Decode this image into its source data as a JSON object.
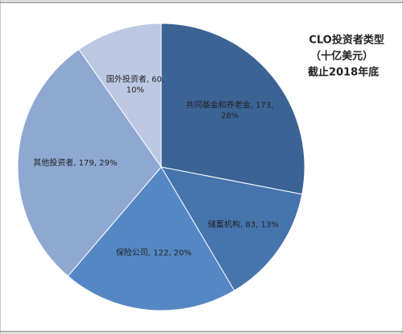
{
  "chart_data": {
    "type": "pie",
    "title": [
      "CLO投资者类型",
      "（十亿美元）",
      "截止2018年底"
    ],
    "values": [
      173,
      83,
      122,
      179,
      60
    ],
    "value_labels": [
      [
        "共同基金和养老金, 173,",
        "28%"
      ],
      [
        "储蓄机构, 83, 13%"
      ],
      [
        "保险公司, 122, 20%"
      ],
      [
        "其他投资者, 179, 29%"
      ],
      [
        "国外投资者, 60,",
        "10%"
      ]
    ],
    "colors": [
      "#3b6394",
      "#4674ad",
      "#5587c5",
      "#8ea8d2",
      "#bdc9e2"
    ],
    "start_angle": 0,
    "direction": "clockwise"
  }
}
